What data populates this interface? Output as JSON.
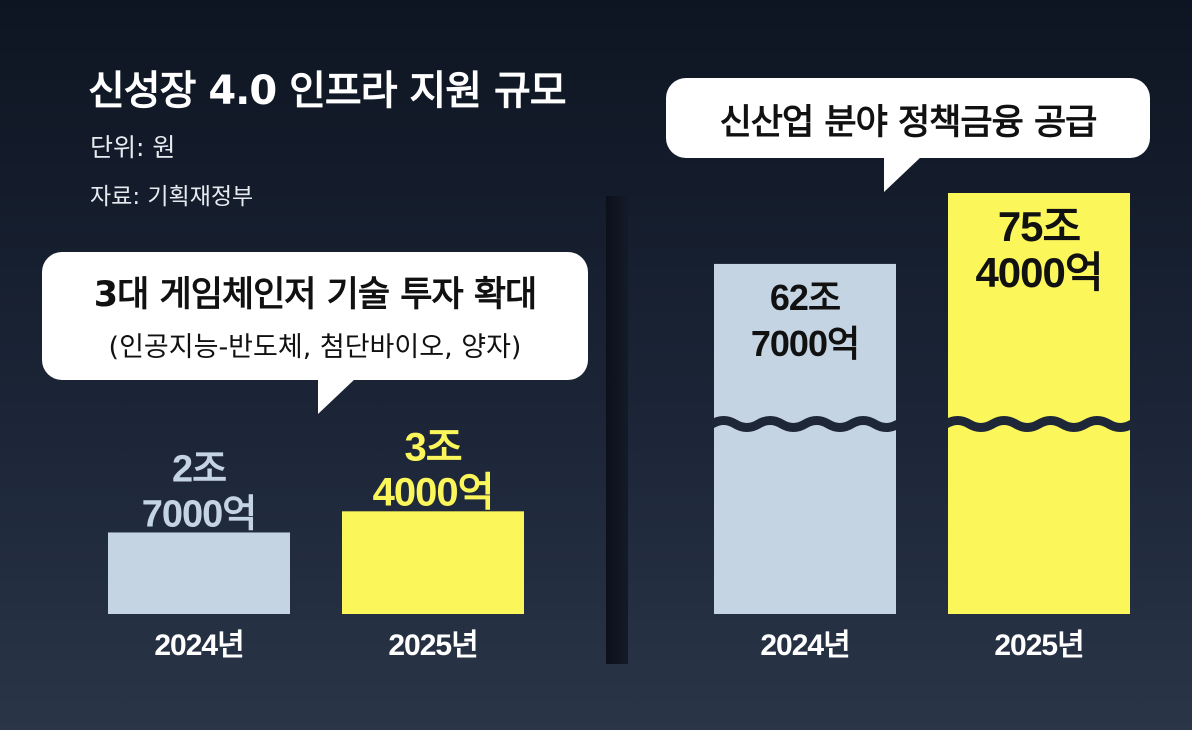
{
  "title": "신성장 4.0 인프라 지원 규모",
  "unit": "단위: 원",
  "source": "자료: 기획재정부",
  "colors": {
    "bar_2024": "#c4d4e3",
    "bar_2025": "#fbf65a",
    "label_2024": "#c4d4e3",
    "label_2025": "#fbf65a",
    "axis_text": "#ffffff"
  },
  "chart_data": [
    {
      "type": "bar",
      "title": "3대 게임체인저 기술 투자 확대",
      "subtitle": "(인공지능-반도체, 첨단바이오, 양자)",
      "categories": [
        "2024년",
        "2025년"
      ],
      "values": [
        27000,
        34000
      ],
      "value_unit": "억",
      "value_labels": [
        [
          "2조",
          "7000억"
        ],
        [
          "3조",
          "4000억"
        ]
      ],
      "ylim": [
        0,
        100000
      ],
      "axis_break": false
    },
    {
      "type": "bar",
      "title": "신산업 분야 정책금융 공급",
      "categories": [
        "2024년",
        "2025년"
      ],
      "values": [
        627000,
        754000
      ],
      "value_unit": "억",
      "value_labels": [
        [
          "62조",
          "7000억"
        ],
        [
          "75조",
          "4000억"
        ]
      ],
      "axis_break": true
    }
  ]
}
